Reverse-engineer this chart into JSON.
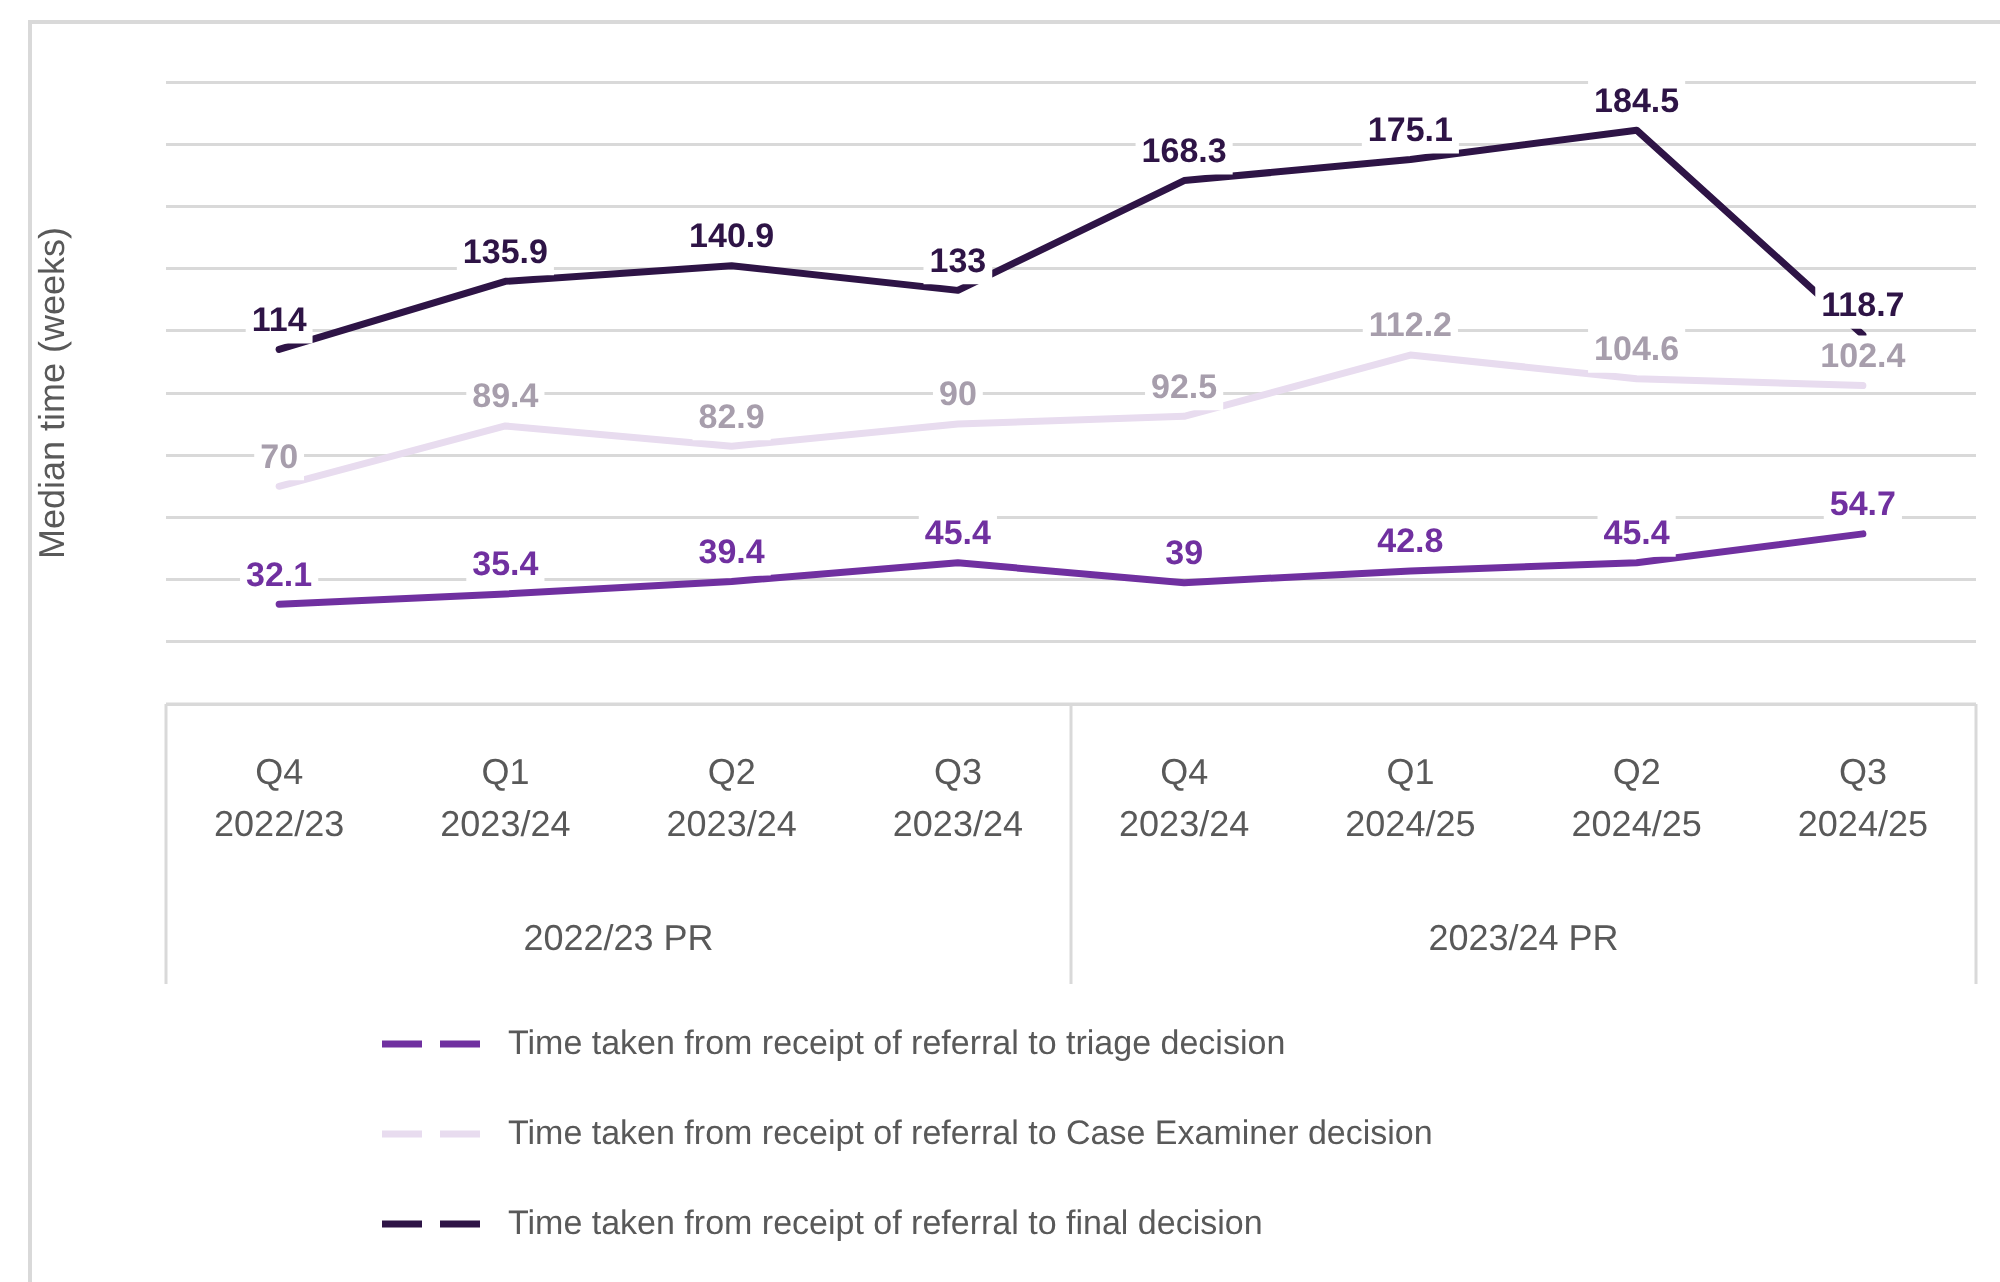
{
  "chart_data": {
    "type": "line",
    "ylabel": "Median time (weeks)",
    "categories": [
      "Q4\n2022/23",
      "Q1\n2023/24",
      "Q2\n2023/24",
      "Q3\n2023/24",
      "Q4\n2023/24",
      "Q1\n2024/25",
      "Q2\n2024/25",
      "Q3\n2024/25"
    ],
    "series": [
      {
        "name": "Time taken from receipt of referral to triage decision",
        "color": "#7030a0",
        "values": [
          32.1,
          35.4,
          39.4,
          45.4,
          39,
          42.8,
          45.4,
          54.7
        ]
      },
      {
        "name": "Time taken from receipt of referral to Case Examiner decision",
        "color": "#e8dcef",
        "values": [
          70,
          89.4,
          82.9,
          90,
          92.5,
          112.2,
          104.6,
          102.4
        ]
      },
      {
        "name": "Time taken from receipt of referral to final decision",
        "color": "#2e1446",
        "values": [
          114,
          135.9,
          140.9,
          133,
          168.3,
          175.1,
          184.5,
          118.7
        ]
      }
    ],
    "annotations": [
      "2022/23 PR",
      "2023/24 PR"
    ],
    "ylim": [
      0,
      200
    ],
    "yticks": [
      {
        "value": 0,
        "label": null
      },
      {
        "value": 20,
        "label": null
      },
      {
        "value": 40,
        "label": null
      },
      {
        "value": 60,
        "label": null
      },
      {
        "value": 80,
        "label": null
      },
      {
        "value": 100,
        "label": null
      },
      {
        "value": 120,
        "label": null
      },
      {
        "value": 140,
        "label": null
      },
      {
        "value": 160,
        "label": null
      },
      {
        "value": 180,
        "label": null
      },
      {
        "value": 200,
        "label": null
      }
    ],
    "grid": "y",
    "legend": "bottom",
    "data_labels": true,
    "tick_labels": "x",
    "marker": "none",
    "line_style": "solid"
  }
}
